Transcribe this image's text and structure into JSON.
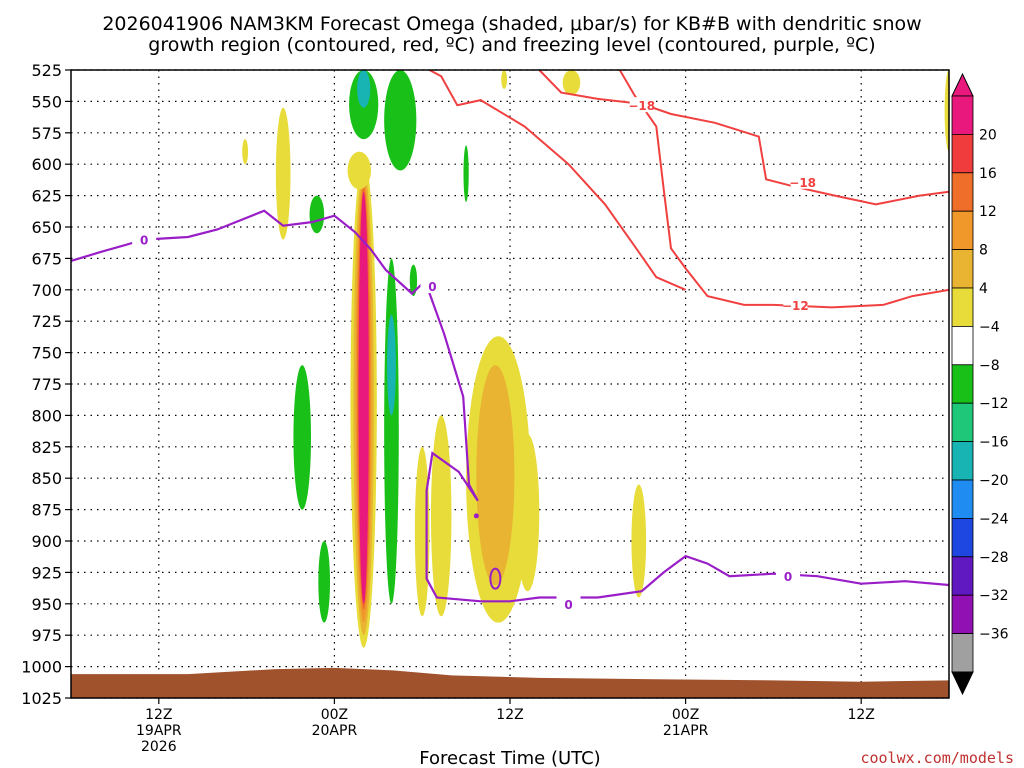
{
  "chart_data": {
    "type": "time-height cross section",
    "title_line1": "2026041906 NAM3KM Forecast Omega (shaded, μbar/s) for KB#B with dendritic snow",
    "title_line2": "growth region (contoured, red, ºC) and freezing level (contoured, purple, ºC)",
    "xlabel": "Forecast Time (UTC)",
    "credit": "coolwx.com/models",
    "x_range_hours": [
      0,
      60
    ],
    "y_range_mb": [
      525,
      1025
    ],
    "y_ticks": [
      525,
      550,
      575,
      600,
      625,
      650,
      675,
      700,
      725,
      750,
      775,
      800,
      825,
      850,
      875,
      900,
      925,
      950,
      975,
      1000,
      1025
    ],
    "x_ticks": [
      {
        "hour": 6,
        "lines": [
          "12Z",
          "19APR",
          "2026"
        ]
      },
      {
        "hour": 18,
        "lines": [
          "00Z",
          "20APR"
        ]
      },
      {
        "hour": 30,
        "lines": [
          "12Z"
        ]
      },
      {
        "hour": 42,
        "lines": [
          "00Z",
          "21APR"
        ]
      },
      {
        "hour": 54,
        "lines": [
          "12Z"
        ]
      }
    ],
    "colorbar": {
      "ticks": [
        "20",
        "16",
        "12",
        "8",
        "4",
        "−4",
        "−8",
        "−12",
        "−16",
        "−20",
        "−24",
        "−28",
        "−32",
        "−36"
      ],
      "colors": [
        "#e8187c",
        "#f03c3c",
        "#ee6e2a",
        "#f0982a",
        "#e8b432",
        "#e8dc3a",
        "#ffffff",
        "#18c018",
        "#1ec878",
        "#18b4b4",
        "#1e8cf0",
        "#1e46e0",
        "#6018c0",
        "#9010b4",
        "#a0a0a0"
      ]
    },
    "omega_fields": [
      {
        "t": 20.0,
        "p1": 595,
        "p2": 985,
        "w": 0.9,
        "color": "#e8dc3a"
      },
      {
        "t": 20.0,
        "p1": 605,
        "p2": 975,
        "w": 0.7,
        "color": "#e8b432"
      },
      {
        "t": 20.0,
        "p1": 612,
        "p2": 965,
        "w": 0.55,
        "color": "#f0982a"
      },
      {
        "t": 20.0,
        "p1": 618,
        "p2": 955,
        "w": 0.45,
        "color": "#ee6e2a"
      },
      {
        "t": 20.0,
        "p1": 622,
        "p2": 950,
        "w": 0.35,
        "color": "#e8187c"
      },
      {
        "t": 29.2,
        "p1": 737,
        "p2": 965,
        "w": 2.2,
        "color": "#e8dc3a"
      },
      {
        "t": 29.0,
        "p1": 760,
        "p2": 935,
        "w": 1.3,
        "color": "#e8b432"
      },
      {
        "t": 31.2,
        "p1": 815,
        "p2": 940,
        "w": 0.8,
        "color": "#e8dc3a"
      },
      {
        "t": 25.3,
        "p1": 800,
        "p2": 960,
        "w": 0.7,
        "color": "#e8dc3a"
      },
      {
        "t": 24.0,
        "p1": 825,
        "p2": 960,
        "w": 0.5,
        "color": "#e8dc3a"
      },
      {
        "t": 38.8,
        "p1": 855,
        "p2": 945,
        "w": 0.5,
        "color": "#e8dc3a"
      },
      {
        "t": 14.5,
        "p1": 555,
        "p2": 660,
        "w": 0.5,
        "color": "#e8dc3a"
      },
      {
        "t": 11.9,
        "p1": 580,
        "p2": 600,
        "w": 0.2,
        "color": "#e8dc3a"
      },
      {
        "t": 19.7,
        "p1": 590,
        "p2": 620,
        "w": 0.8,
        "color": "#e8dc3a"
      },
      {
        "t": 22.5,
        "p1": 525,
        "p2": 605,
        "w": 1.1,
        "color": "#18c018"
      },
      {
        "t": 20.0,
        "p1": 525,
        "p2": 580,
        "w": 1.0,
        "color": "#18c018"
      },
      {
        "t": 20.0,
        "p1": 525,
        "p2": 555,
        "w": 0.45,
        "color": "#18b4b4"
      },
      {
        "t": 15.8,
        "p1": 760,
        "p2": 875,
        "w": 0.6,
        "color": "#18c018"
      },
      {
        "t": 17.3,
        "p1": 900,
        "p2": 965,
        "w": 0.4,
        "color": "#18c018"
      },
      {
        "t": 16.8,
        "p1": 625,
        "p2": 655,
        "w": 0.5,
        "color": "#18c018"
      },
      {
        "t": 21.9,
        "p1": 675,
        "p2": 950,
        "w": 0.5,
        "color": "#18c018"
      },
      {
        "t": 21.9,
        "p1": 720,
        "p2": 800,
        "w": 0.3,
        "color": "#18b4b4"
      },
      {
        "t": 23.4,
        "p1": 680,
        "p2": 705,
        "w": 0.25,
        "color": "#18c018"
      },
      {
        "t": 27.0,
        "p1": 585,
        "p2": 630,
        "w": 0.18,
        "color": "#18c018"
      },
      {
        "t": 60.0,
        "p1": 525,
        "p2": 590,
        "w": 0.3,
        "color": "#e8dc3a"
      },
      {
        "t": 34.2,
        "p1": 525,
        "p2": 545,
        "w": 0.6,
        "color": "#e8dc3a"
      },
      {
        "t": 29.6,
        "p1": 525,
        "p2": 540,
        "w": 0.2,
        "color": "#e8dc3a"
      }
    ],
    "freezing_level": [
      [
        0,
        677
      ],
      [
        2,
        670
      ],
      [
        5,
        660
      ],
      [
        8,
        658
      ],
      [
        10,
        652
      ],
      [
        13.2,
        637
      ],
      [
        14.5,
        649
      ],
      [
        16.5,
        646
      ],
      [
        18,
        641
      ],
      [
        19.4,
        654
      ],
      [
        20.5,
        668
      ],
      [
        21.5,
        684
      ],
      [
        23.3,
        703
      ],
      [
        24.2,
        693
      ],
      [
        25.5,
        735
      ],
      [
        26.8,
        785
      ],
      [
        27.2,
        855
      ],
      [
        27.8,
        868
      ],
      [
        26.5,
        845
      ],
      [
        24.7,
        830
      ],
      [
        24.3,
        860
      ],
      [
        24.3,
        930
      ],
      [
        25.0,
        945
      ],
      [
        28,
        948
      ],
      [
        30,
        948
      ],
      [
        32,
        945
      ],
      [
        36,
        945
      ],
      [
        39,
        940
      ],
      [
        40.5,
        925
      ],
      [
        42,
        912
      ],
      [
        43.5,
        918
      ],
      [
        45,
        928
      ],
      [
        48,
        926
      ],
      [
        51,
        928
      ],
      [
        54,
        934
      ],
      [
        57,
        932
      ],
      [
        60,
        935
      ]
    ],
    "fz_label": {
      "t": 34.0,
      "p": 950,
      "text": "0"
    },
    "fz_label2": {
      "t": 49.0,
      "p": 928,
      "text": "0"
    },
    "fz_label3": {
      "t": 5.0,
      "p": 660,
      "text": "0"
    },
    "fz_label4": {
      "t": 24.7,
      "p": 697,
      "text": "0"
    },
    "isotherm_m12": [
      [
        37.5,
        525
      ],
      [
        38.5,
        545
      ],
      [
        40.0,
        570
      ],
      [
        40.5,
        620
      ],
      [
        41.0,
        667
      ],
      [
        42.0,
        683
      ],
      [
        43.5,
        705
      ],
      [
        46,
        712
      ],
      [
        48,
        712
      ],
      [
        52,
        714
      ],
      [
        55.5,
        712
      ],
      [
        57.5,
        705
      ],
      [
        60,
        700
      ]
    ],
    "isotherm_m18a": [
      [
        24.5,
        525
      ],
      [
        25.3,
        530
      ],
      [
        26.4,
        553
      ],
      [
        28,
        549
      ],
      [
        31,
        570
      ],
      [
        34,
        600
      ],
      [
        36.5,
        632
      ],
      [
        38.5,
        665
      ],
      [
        40,
        690
      ],
      [
        42,
        700
      ]
    ],
    "isotherm_m18b": [
      [
        32.0,
        525
      ],
      [
        33.5,
        543
      ],
      [
        36,
        548
      ],
      [
        39,
        552
      ],
      [
        41,
        560
      ],
      [
        44,
        567
      ],
      [
        47,
        578
      ],
      [
        47.5,
        612
      ],
      [
        49.5,
        618
      ],
      [
        52.2,
        625
      ],
      [
        55,
        632
      ],
      [
        58,
        625
      ],
      [
        60,
        622
      ]
    ],
    "label_m12": {
      "t": 49.5,
      "p": 712,
      "text": "−12"
    },
    "label_m18a": {
      "t": 39.0,
      "p": 553,
      "text": "−18"
    },
    "label_m18b": {
      "t": 50.0,
      "p": 614,
      "text": "−18"
    },
    "terrain": [
      [
        0,
        1006
      ],
      [
        8,
        1006
      ],
      [
        14,
        1002
      ],
      [
        18,
        1001
      ],
      [
        22,
        1003
      ],
      [
        26,
        1007
      ],
      [
        32,
        1009
      ],
      [
        40,
        1010
      ],
      [
        48,
        1011
      ],
      [
        54,
        1012
      ],
      [
        60,
        1011
      ]
    ]
  }
}
